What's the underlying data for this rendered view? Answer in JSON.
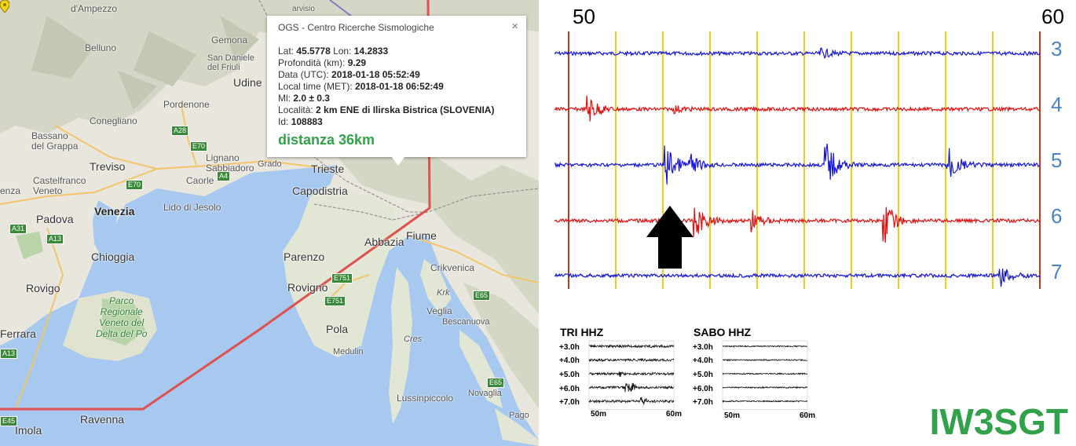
{
  "map": {
    "places": {
      "cortina": "d'Ampezzo",
      "belluno": "Belluno",
      "gemona": "Gemona",
      "sandaniele": "San Daniele\ndel Friuli",
      "udine": "Udine",
      "pordenone": "Pordenone",
      "conegliano": "Conegliano",
      "bassano": "Bassano\ndel Grappa",
      "lignano": "Lignano\nSabbiadoro",
      "grado": "Grado",
      "treviso": "Treviso",
      "castelfranco": "Castelfranco\nVeneto",
      "caorle": "Caorle",
      "lido": "Lido di Jesolo",
      "venezia": "Venezia",
      "padova": "Padova",
      "chioggia": "Chioggia",
      "rovigo": "Rovigo",
      "ferrara": "Ferrara",
      "ravenna": "Ravenna",
      "imola": "Imola",
      "trieste": "Trieste",
      "capodistria": "Capodistria",
      "parenzo": "Parenzo",
      "rovigno": "Rovigno",
      "pola": "Pola",
      "medulin": "Medulin",
      "abbazia": "Abbazia",
      "fiume": "Fiume",
      "crikvenica": "Crikvenica",
      "krk": "Krk",
      "veglia": "Veglia",
      "bescanuova": "Bescanuova",
      "cres": "Cres",
      "lussinpiccolo": "Lussinpiccolo",
      "novaglia": "Novaglia",
      "pago": "Pago",
      "enza": "enza",
      "park": "Parco\nRegionale\nVeneto del\nDelta del Po",
      "visio": "arvisio"
    },
    "shields": [
      "A28",
      "E70",
      "E70",
      "A4",
      "A31",
      "A13",
      "A13",
      "E751",
      "E751",
      "E65",
      "E65",
      "E45"
    ]
  },
  "popup": {
    "title": "OGS - Centro Ricerche Sismologiche",
    "close": "×",
    "lat_label": "Lat: ",
    "lat": "45.5778",
    "lon_label": " Lon: ",
    "lon": "14.2833",
    "depth_label": "Profondità (km): ",
    "depth": "9.29",
    "utc_label": "Data (UTC): ",
    "utc": "2018-01-18 05:52:49",
    "local_label": "Local time (MET): ",
    "local": "2018-01-18 06:52:49",
    "ml_label": "Ml: ",
    "ml": "2.0 ± 0.3",
    "loc_label": "Località: ",
    "loc": "2 km ENE di Ilirska Bistrica (SLOVENIA)",
    "id_label": "Id: ",
    "id": "108883",
    "distance": "distanza 36km"
  },
  "seismogram": {
    "minute_start": "50",
    "minute_end": "60",
    "hours": [
      "3",
      "4",
      "5",
      "6",
      "7"
    ],
    "trace_colors": [
      "#1515d8",
      "#e01010",
      "#1515d8",
      "#e01010",
      "#1515d8"
    ],
    "gridline_color": "#f2cf1d",
    "boundary_color": "#c23a14",
    "hour_label_color": "#4b84c3"
  },
  "mini_plots": [
    {
      "title": "TRI HHZ",
      "rows": [
        "+3.0h",
        "+4.0h",
        "+5.0h",
        "+6.0h",
        "+7.0h"
      ],
      "x_start": "50m",
      "x_end": "60m"
    },
    {
      "title": "SABO HHZ",
      "rows": [
        "+3.0h",
        "+4.0h",
        "+5.0h",
        "+6.0h",
        "+7.0h"
      ],
      "x_start": "50m",
      "x_end": "60m"
    }
  ],
  "callsign": "IW3SGT",
  "colors": {
    "sea": "#a5c8f0",
    "land": "#e8e5dc",
    "border_line": "#e05050",
    "distance_green": "#31a14a"
  }
}
